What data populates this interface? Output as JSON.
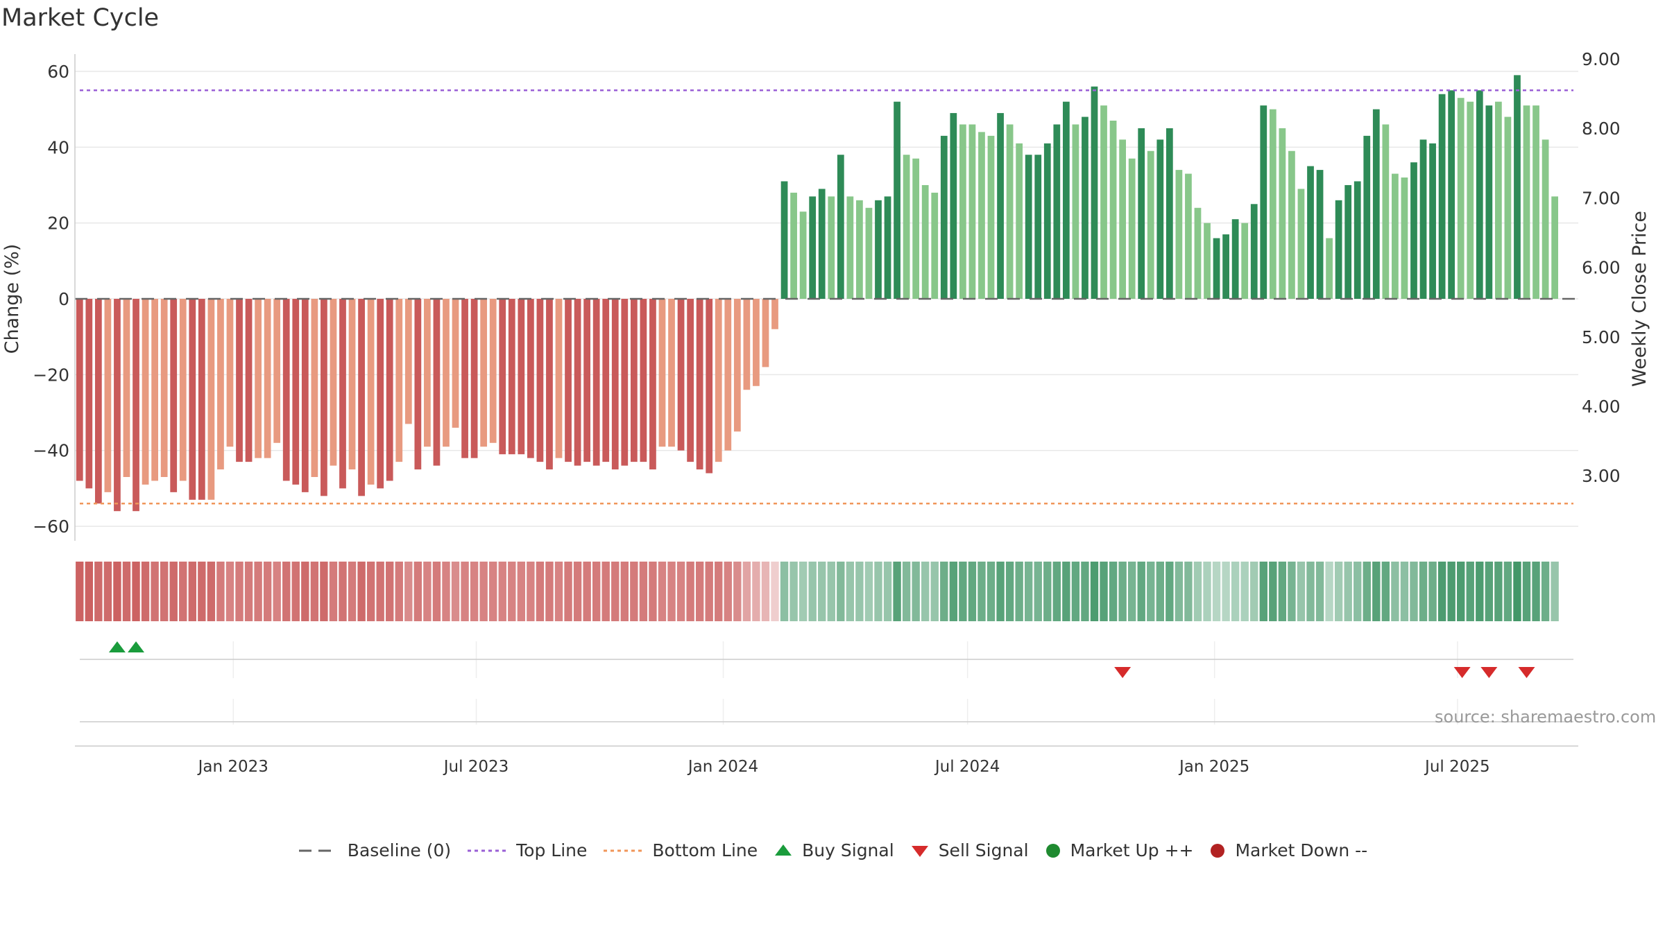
{
  "title": "Market Cycle",
  "source": "source: sharemaestro.com",
  "colors": {
    "neg_dark": "#c95a5a",
    "neg_light": "#e89a80",
    "pos_dark": "#2e8b57",
    "pos_light": "#88c78a",
    "top_line": "#9a5fd6",
    "bottom_line": "#f0965a",
    "baseline": "#666666",
    "buy": "#1a9c3c",
    "sell": "#d62b2b",
    "market_up": "#1f8a30",
    "market_down": "#b22222"
  },
  "legend": [
    {
      "label": "Baseline (0)",
      "icon": "dash-line-icon"
    },
    {
      "label": "Top Line",
      "icon": "dotted-line-purple-icon"
    },
    {
      "label": "Bottom Line",
      "icon": "dotted-line-orange-icon"
    },
    {
      "label": "Buy Signal",
      "icon": "triangle-up-icon"
    },
    {
      "label": "Sell Signal",
      "icon": "triangle-down-icon"
    },
    {
      "label": "Market Up ++",
      "icon": "green-dot-icon"
    },
    {
      "label": "Market Down --",
      "icon": "red-dot-icon"
    }
  ],
  "chart_data": {
    "type": "bar",
    "title": "Market Cycle",
    "ylabel": "Change (%)",
    "y2label": "Weekly Close Price",
    "ylim": [
      -64,
      64
    ],
    "yticks": [
      60,
      40,
      20,
      0,
      -20,
      -40,
      -60
    ],
    "ytick_labels": [
      "60",
      "40",
      "20",
      "0",
      "−20",
      "−40",
      "−60"
    ],
    "y2ticks": [
      "9.00",
      "8.00",
      "7.00",
      "6.00",
      "5.00",
      "4.00",
      "3.00"
    ],
    "top_line": 55,
    "bottom_line": -54,
    "baseline": 0,
    "x_start": "2022-09-05",
    "x_end": "2025-09-29",
    "xticks": [
      {
        "date": "2023-01-01",
        "label": "Jan 2023"
      },
      {
        "date": "2023-07-01",
        "label": "Jul 2023"
      },
      {
        "date": "2024-01-01",
        "label": "Jan 2024"
      },
      {
        "date": "2024-07-01",
        "label": "Jul 2024"
      },
      {
        "date": "2025-01-01",
        "label": "Jan 2025"
      },
      {
        "date": "2025-07-01",
        "label": "Jul 2025"
      }
    ],
    "first_week": "2022-09-05",
    "week_step_days": 7,
    "values": [
      -48,
      -50,
      -54,
      -51,
      -56,
      -47,
      -56,
      -49,
      -48,
      -47,
      -51,
      -48,
      -53,
      -53,
      -53,
      -45,
      -39,
      -43,
      -43,
      -42,
      -42,
      -38,
      -48,
      -49,
      -51,
      -47,
      -52,
      -44,
      -50,
      -45,
      -52,
      -49,
      -50,
      -48,
      -43,
      -33,
      -45,
      -39,
      -44,
      -39,
      -34,
      -42,
      -42,
      -39,
      -38,
      -41,
      -41,
      -41,
      -42,
      -43,
      -45,
      -42,
      -43,
      -44,
      -43,
      -44,
      -43,
      -45,
      -44,
      -43,
      -43,
      -45,
      -39,
      -39,
      -40,
      -43,
      -45,
      -46,
      -43,
      -40,
      -35,
      -24,
      -23,
      -18,
      -8,
      31,
      28,
      23,
      27,
      29,
      27,
      38,
      27,
      26,
      24,
      26,
      27,
      52,
      38,
      37,
      30,
      28,
      43,
      49,
      46,
      46,
      44,
      43,
      49,
      46,
      41,
      38,
      38,
      41,
      46,
      52,
      46,
      48,
      56,
      51,
      47,
      42,
      37,
      45,
      39,
      42,
      45,
      34,
      33,
      24,
      20,
      16,
      17,
      21,
      20,
      25,
      51,
      50,
      45,
      39,
      29,
      35,
      34,
      16,
      26,
      30,
      31,
      43,
      50,
      46,
      33,
      32,
      36,
      42,
      41,
      54,
      55,
      53,
      52,
      55,
      51,
      52,
      48,
      59,
      51,
      51,
      42,
      27
    ],
    "dark_weeks": [
      0,
      1,
      2,
      4,
      6,
      10,
      12,
      13,
      17,
      18,
      22,
      23,
      24,
      26,
      28,
      30,
      32,
      33,
      36,
      38,
      41,
      42,
      45,
      46,
      47,
      48,
      49,
      50,
      52,
      53,
      54,
      55,
      56,
      57,
      58,
      59,
      60,
      61,
      64,
      65,
      66,
      67,
      75,
      78,
      79,
      81,
      85,
      86,
      87,
      92,
      93,
      98,
      101,
      102,
      103,
      104,
      105,
      107,
      108,
      113,
      115,
      116,
      121,
      122,
      123,
      125,
      126,
      131,
      132,
      134,
      135,
      136,
      137,
      138,
      142,
      143,
      144,
      145,
      146,
      149,
      150,
      153
    ],
    "strip_levels": [
      0.95,
      0.95,
      0.9,
      0.9,
      0.95,
      0.9,
      0.95,
      0.9,
      0.85,
      0.85,
      0.9,
      0.85,
      0.9,
      0.9,
      0.9,
      0.8,
      0.75,
      0.8,
      0.8,
      0.8,
      0.8,
      0.75,
      0.85,
      0.85,
      0.9,
      0.85,
      0.9,
      0.8,
      0.85,
      0.8,
      0.9,
      0.85,
      0.85,
      0.85,
      0.8,
      0.7,
      0.8,
      0.75,
      0.8,
      0.75,
      0.7,
      0.75,
      0.75,
      0.75,
      0.75,
      0.75,
      0.75,
      0.75,
      0.75,
      0.8,
      0.8,
      0.75,
      0.8,
      0.8,
      0.8,
      0.8,
      0.8,
      0.8,
      0.8,
      0.8,
      0.8,
      0.8,
      0.75,
      0.75,
      0.75,
      0.8,
      0.8,
      0.8,
      0.8,
      0.75,
      0.7,
      0.55,
      0.5,
      0.45,
      0.3,
      0.55,
      0.5,
      0.45,
      0.5,
      0.5,
      0.5,
      0.6,
      0.5,
      0.5,
      0.45,
      0.5,
      0.5,
      0.8,
      0.6,
      0.6,
      0.5,
      0.5,
      0.7,
      0.8,
      0.75,
      0.75,
      0.7,
      0.7,
      0.8,
      0.75,
      0.7,
      0.65,
      0.65,
      0.7,
      0.75,
      0.8,
      0.75,
      0.75,
      0.85,
      0.8,
      0.75,
      0.7,
      0.65,
      0.75,
      0.65,
      0.7,
      0.75,
      0.6,
      0.6,
      0.45,
      0.4,
      0.35,
      0.35,
      0.4,
      0.4,
      0.45,
      0.8,
      0.8,
      0.75,
      0.65,
      0.5,
      0.6,
      0.6,
      0.35,
      0.45,
      0.5,
      0.55,
      0.7,
      0.8,
      0.75,
      0.55,
      0.55,
      0.6,
      0.7,
      0.7,
      0.85,
      0.85,
      0.85,
      0.8,
      0.85,
      0.8,
      0.8,
      0.75,
      0.9,
      0.8,
      0.8,
      0.7,
      0.5
    ],
    "buy_signals": [
      "2022-10-03",
      "2022-10-17"
    ],
    "sell_signals": [
      "2024-10-21",
      "2025-07-01",
      "2025-07-21",
      "2025-08-18"
    ],
    "legend_placement": "bottom-center",
    "grid": true
  }
}
